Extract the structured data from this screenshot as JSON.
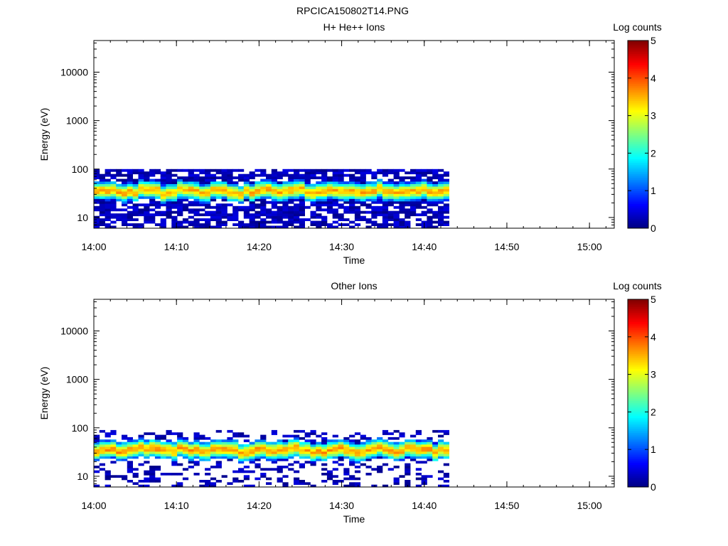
{
  "figure_title": "RPCICA150802T14.PNG",
  "colorbar_ticks": [
    "0",
    "1",
    "2",
    "3",
    "4",
    "5"
  ],
  "chart_data": [
    {
      "type": "heatmap",
      "title": "H+ He++ Ions",
      "xlabel": "Time",
      "ylabel": "Energy (eV)",
      "colorbar_label": "Log counts",
      "colorbar_range": [
        0,
        5
      ],
      "y_scale": "log",
      "ylim": [
        6,
        45000
      ],
      "xlim": [
        "14:00",
        "15:03"
      ],
      "x_ticks": [
        "14:00",
        "14:10",
        "14:20",
        "14:30",
        "14:40",
        "14:50",
        "15:00"
      ],
      "y_ticks": [
        "10",
        "100",
        "1000",
        "10000"
      ],
      "data_time_range": [
        "14:00",
        "14:43"
      ],
      "data_energy_range": [
        6,
        100
      ],
      "peak_energy": 35,
      "peak_log_counts": 3.5,
      "grid": false
    },
    {
      "type": "heatmap",
      "title": "Other Ions",
      "xlabel": "Time",
      "ylabel": "Energy (eV)",
      "colorbar_label": "Log counts",
      "colorbar_range": [
        0,
        5
      ],
      "y_scale": "log",
      "ylim": [
        6,
        45000
      ],
      "xlim": [
        "14:00",
        "15:03"
      ],
      "x_ticks": [
        "14:00",
        "14:10",
        "14:20",
        "14:30",
        "14:40",
        "14:50",
        "15:00"
      ],
      "y_ticks": [
        "10",
        "100",
        "1000",
        "10000"
      ],
      "data_time_range": [
        "14:00",
        "14:43"
      ],
      "data_energy_range": [
        6,
        90
      ],
      "peak_energy": 35,
      "peak_log_counts": 3.6,
      "grid": false
    }
  ]
}
